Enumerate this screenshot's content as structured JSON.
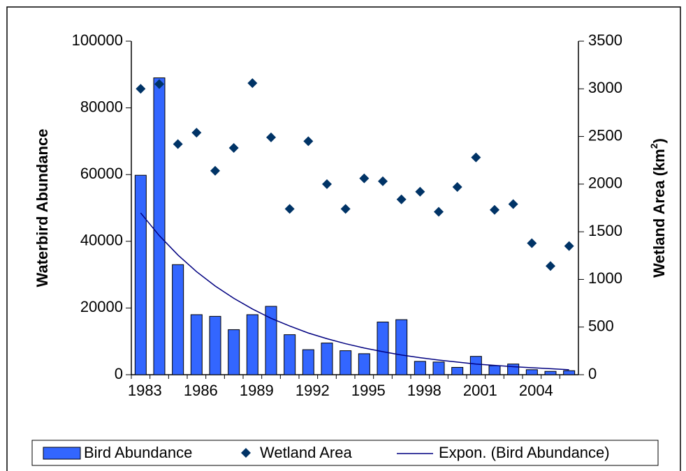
{
  "chart_data": {
    "type": "bar",
    "categories": [
      "1983",
      null,
      null,
      "1986",
      null,
      null,
      "1989",
      null,
      null,
      "1992",
      null,
      null,
      "1995",
      null,
      null,
      "1998",
      null,
      null,
      "2001",
      null,
      null,
      "2004",
      null,
      null
    ],
    "y_label": "Waterbird Abundance",
    "y2_label": "Wetland Area (km",
    "y2_label_sup": "2",
    "y2_label_end": ")",
    "series": [
      {
        "name": "Bird Abundance",
        "type": "bar",
        "axis": "y",
        "color": "#3366ff",
        "values": [
          59800,
          89000,
          33000,
          18000,
          17500,
          13500,
          18000,
          20500,
          12000,
          7500,
          9500,
          7200,
          6300,
          15800,
          16500,
          4000,
          3800,
          2200,
          5500,
          2700,
          3200,
          1500,
          1000,
          1200
        ]
      },
      {
        "name": "Wetland Area",
        "type": "scatter",
        "axis": "y2",
        "color": "#003366",
        "values": [
          3000,
          3050,
          2420,
          2540,
          2140,
          2380,
          3060,
          2490,
          1740,
          2450,
          2000,
          1740,
          2060,
          2030,
          1840,
          1920,
          1710,
          1970,
          2280,
          1730,
          1790,
          1380,
          1140,
          1350
        ]
      },
      {
        "name": "Expon. (Bird Abundance)",
        "type": "line",
        "axis": "y",
        "color": "#000080",
        "values": [
          48500,
          41700,
          35900,
          30900,
          26600,
          22900,
          19700,
          16900,
          14600,
          12500,
          10800,
          9300,
          8000,
          6900,
          5900,
          5100,
          4400,
          3800,
          3200,
          2800,
          2400,
          2100,
          1800,
          1500
        ]
      }
    ],
    "ylim": [
      0,
      100000
    ],
    "yticks": [
      0,
      20000,
      40000,
      60000,
      80000,
      100000
    ],
    "y2lim": [
      0,
      3500
    ],
    "y2ticks": [
      0,
      500,
      1000,
      1500,
      2000,
      2500,
      3000,
      3500
    ],
    "grid": false,
    "legend": "bottom"
  }
}
